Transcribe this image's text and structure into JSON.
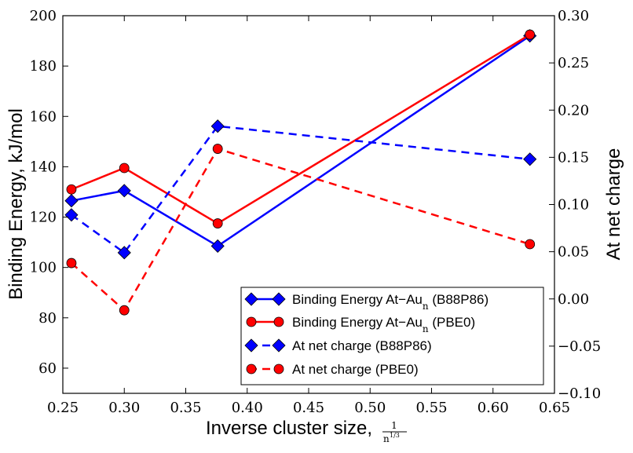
{
  "chart_data": {
    "type": "line",
    "xlabel": "Inverse cluster size,",
    "xlabel_fraction": {
      "numerator": "1",
      "denominator": "n",
      "denominator_exponent": "1/3"
    },
    "ylabel_left": "Binding Energy, kJ/mol",
    "ylabel_right": "At net charge",
    "xlim": [
      0.25,
      0.65
    ],
    "ylim_left": [
      50,
      200
    ],
    "ylim_right": [
      -0.1,
      0.3
    ],
    "x_ticks": [
      0.25,
      0.3,
      0.35,
      0.4,
      0.45,
      0.5,
      0.55,
      0.6,
      0.65
    ],
    "x_tick_labels": [
      "0.25",
      "0.30",
      "0.35",
      "0.40",
      "0.45",
      "0.50",
      "0.55",
      "0.60",
      "0.65"
    ],
    "y_left_ticks": [
      60,
      80,
      100,
      120,
      140,
      160,
      180,
      200
    ],
    "y_left_tick_labels": [
      "60",
      "80",
      "100",
      "120",
      "140",
      "160",
      "180",
      "200"
    ],
    "y_right_ticks": [
      -0.1,
      -0.05,
      0.0,
      0.05,
      0.1,
      0.15,
      0.2,
      0.25,
      0.3
    ],
    "y_right_tick_labels": [
      "−0.10",
      "−0.05",
      "0.00",
      "0.05",
      "0.10",
      "0.15",
      "0.20",
      "0.25",
      "0.30"
    ],
    "grid": false,
    "legend_placement": "lower-right",
    "series": [
      {
        "name": "Binding Energy At−Au",
        "name_subscript": "n",
        "name_suffix": " (B88P86)",
        "axis": "left",
        "color": "#0000ff",
        "linestyle": "solid",
        "marker": "diamond",
        "x": [
          0.257,
          0.3,
          0.376,
          0.63
        ],
        "values": [
          126.5,
          130.5,
          108.5,
          192.0
        ]
      },
      {
        "name": "Binding Energy At−Au",
        "name_subscript": "n",
        "name_suffix": " (PBE0)",
        "axis": "left",
        "color": "#ff0000",
        "linestyle": "solid",
        "marker": "circle",
        "x": [
          0.257,
          0.3,
          0.376,
          0.63
        ],
        "values": [
          131.0,
          139.5,
          117.5,
          192.5
        ]
      },
      {
        "name": "At net charge (B88P86)",
        "axis": "right",
        "color": "#0000ff",
        "linestyle": "dashed",
        "marker": "diamond",
        "x": [
          0.257,
          0.3,
          0.376,
          0.63
        ],
        "values": [
          0.089,
          0.049,
          0.183,
          0.148
        ]
      },
      {
        "name": "At net charge (PBE0)",
        "axis": "right",
        "color": "#ff0000",
        "linestyle": "dashed",
        "marker": "circle",
        "x": [
          0.257,
          0.3,
          0.376,
          0.63
        ],
        "values": [
          0.038,
          -0.012,
          0.159,
          0.058
        ]
      }
    ]
  }
}
